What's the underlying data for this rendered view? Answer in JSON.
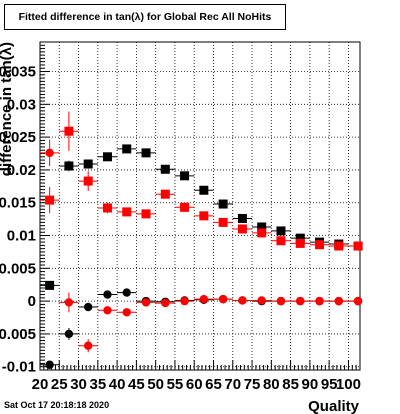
{
  "title": "Fitted difference in tan(λ) for Global Rec All NoHits",
  "footer": "Sat Oct 17 20:18:18 2020",
  "chart_data": {
    "type": "scatter",
    "title": "Fitted difference in tan(λ) for Global Rec All NoHits",
    "xlabel": "Quality",
    "ylabel": "difference in tan(λ)",
    "xlim": [
      20,
      103
    ],
    "ylim": [
      -0.0105,
      0.0395
    ],
    "x_ticks": [
      20,
      25,
      30,
      35,
      40,
      45,
      50,
      55,
      60,
      65,
      70,
      75,
      80,
      85,
      90,
      95,
      100
    ],
    "y_ticks": [
      -0.01,
      -0.005,
      0,
      0.005,
      0.01,
      0.015,
      0.02,
      0.025,
      0.03,
      0.035
    ],
    "y_tick_labels": [
      "-0.01",
      "-0.005",
      "0",
      "0.005",
      "0.01",
      "0.015",
      "0.02",
      "0.025",
      "0.03",
      "0.035"
    ],
    "grid": true,
    "series": [
      {
        "marker": "square",
        "color": "#000000",
        "points": [
          {
            "x": 22.5,
            "y": 0.0024,
            "err": 0.0
          },
          {
            "x": 27.5,
            "y": 0.0206,
            "err": 0.0008
          },
          {
            "x": 32.5,
            "y": 0.0209,
            "err": 0.0007
          },
          {
            "x": 37.5,
            "y": 0.022,
            "err": 0.0005
          },
          {
            "x": 42.5,
            "y": 0.0232,
            "err": 0.0003
          },
          {
            "x": 47.5,
            "y": 0.0226,
            "err": 0.0003
          },
          {
            "x": 52.5,
            "y": 0.0201,
            "err": 0.0003
          },
          {
            "x": 57.5,
            "y": 0.0191,
            "err": 0.0002
          },
          {
            "x": 62.5,
            "y": 0.0169,
            "err": 0.0002
          },
          {
            "x": 67.5,
            "y": 0.0148,
            "err": 0.0002
          },
          {
            "x": 72.5,
            "y": 0.0126,
            "err": 0.0002
          },
          {
            "x": 77.5,
            "y": 0.0113,
            "err": 0.0002
          },
          {
            "x": 82.5,
            "y": 0.0107,
            "err": 0.0002
          },
          {
            "x": 87.5,
            "y": 0.0096,
            "err": 0.0002
          },
          {
            "x": 92.5,
            "y": 0.009,
            "err": 0.0002
          },
          {
            "x": 97.5,
            "y": 0.0087,
            "err": 0.0002
          },
          {
            "x": 102.5,
            "y": 0.0084,
            "err": 0.0002
          }
        ]
      },
      {
        "marker": "circle",
        "color": "#000000",
        "points": [
          {
            "x": 22.5,
            "y": -0.0097,
            "err": 0.0
          },
          {
            "x": 27.5,
            "y": -0.005,
            "err": 0.0009
          },
          {
            "x": 32.5,
            "y": -0.0009,
            "err": 0.0004
          },
          {
            "x": 37.5,
            "y": 0.001,
            "err": 0.0003
          },
          {
            "x": 42.5,
            "y": 0.0013,
            "err": 0.0003
          },
          {
            "x": 47.5,
            "y": 0.0,
            "err": 0.0003
          },
          {
            "x": 52.5,
            "y": -0.0001,
            "err": 0.0002
          },
          {
            "x": 57.5,
            "y": 0.0001,
            "err": 0.0002
          },
          {
            "x": 62.5,
            "y": 0.0002,
            "err": 0.0002
          },
          {
            "x": 67.5,
            "y": 0.0003,
            "err": 0.0002
          },
          {
            "x": 72.5,
            "y": 0.0001,
            "err": 0.0002
          },
          {
            "x": 77.5,
            "y": 0.0,
            "err": 0.0002
          },
          {
            "x": 82.5,
            "y": 0.0,
            "err": 0.0002
          },
          {
            "x": 87.5,
            "y": 0.0,
            "err": 0.0002
          },
          {
            "x": 92.5,
            "y": 0.0,
            "err": 0.0002
          },
          {
            "x": 97.5,
            "y": 0.0,
            "err": 0.0002
          },
          {
            "x": 102.5,
            "y": 0.0,
            "err": 0.0002
          }
        ]
      },
      {
        "marker": "square",
        "color": "#ff0000",
        "points": [
          {
            "x": 22.5,
            "y": 0.0154,
            "err": 0.002
          },
          {
            "x": 27.5,
            "y": 0.0259,
            "err": 0.003
          },
          {
            "x": 32.5,
            "y": 0.0183,
            "err": 0.0015
          },
          {
            "x": 37.5,
            "y": 0.0142,
            "err": 0.0008
          },
          {
            "x": 42.5,
            "y": 0.0136,
            "err": 0.0005
          },
          {
            "x": 47.5,
            "y": 0.0133,
            "err": 0.0004
          },
          {
            "x": 52.5,
            "y": 0.0163,
            "err": 0.0004
          },
          {
            "x": 57.5,
            "y": 0.0143,
            "err": 0.0003
          },
          {
            "x": 62.5,
            "y": 0.013,
            "err": 0.0003
          },
          {
            "x": 67.5,
            "y": 0.012,
            "err": 0.0002
          },
          {
            "x": 72.5,
            "y": 0.011,
            "err": 0.0002
          },
          {
            "x": 77.5,
            "y": 0.0104,
            "err": 0.0002
          },
          {
            "x": 82.5,
            "y": 0.0092,
            "err": 0.0002
          },
          {
            "x": 87.5,
            "y": 0.0088,
            "err": 0.0002
          },
          {
            "x": 92.5,
            "y": 0.0086,
            "err": 0.0002
          },
          {
            "x": 97.5,
            "y": 0.0084,
            "err": 0.0002
          },
          {
            "x": 102.5,
            "y": 0.0084,
            "err": 0.0002
          }
        ]
      },
      {
        "marker": "circle",
        "color": "#ff0000",
        "points": [
          {
            "x": 22.5,
            "y": 0.0226,
            "err": 0.002
          },
          {
            "x": 27.5,
            "y": -0.0002,
            "err": 0.0015
          },
          {
            "x": 32.5,
            "y": -0.0068,
            "err": 0.001
          },
          {
            "x": 37.5,
            "y": -0.0014,
            "err": 0.0005
          },
          {
            "x": 42.5,
            "y": -0.0017,
            "err": 0.0004
          },
          {
            "x": 47.5,
            "y": -0.0002,
            "err": 0.0003
          },
          {
            "x": 52.5,
            "y": -0.0003,
            "err": 0.0003
          },
          {
            "x": 57.5,
            "y": 0.0,
            "err": 0.0002
          },
          {
            "x": 62.5,
            "y": 0.0003,
            "err": 0.0002
          },
          {
            "x": 67.5,
            "y": 0.0003,
            "err": 0.0002
          },
          {
            "x": 72.5,
            "y": 0.0001,
            "err": 0.0002
          },
          {
            "x": 77.5,
            "y": 0.0001,
            "err": 0.0002
          },
          {
            "x": 82.5,
            "y": 0.0,
            "err": 0.0002
          },
          {
            "x": 87.5,
            "y": 0.0,
            "err": 0.0002
          },
          {
            "x": 92.5,
            "y": 0.0,
            "err": 0.0002
          },
          {
            "x": 97.5,
            "y": 0.0,
            "err": 0.0002
          },
          {
            "x": 102.5,
            "y": 0.0,
            "err": 0.0002
          }
        ]
      }
    ]
  }
}
